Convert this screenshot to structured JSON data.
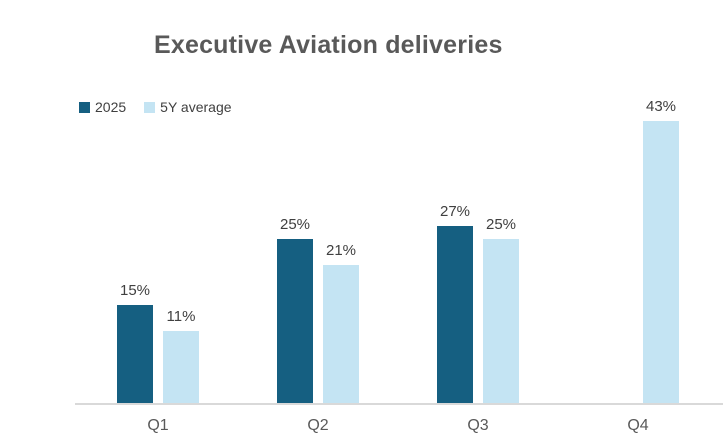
{
  "chart_data": {
    "type": "bar",
    "title": "Executive Aviation deliveries",
    "categories": [
      "Q1",
      "Q2",
      "Q3",
      "Q4"
    ],
    "series": [
      {
        "name": "2025",
        "color": "#155f81",
        "values": [
          15,
          25,
          27,
          null
        ]
      },
      {
        "name": "5Y average",
        "color": "#c4e4f3",
        "values": [
          11,
          21,
          25,
          43
        ]
      }
    ],
    "value_label_suffix": "%",
    "xlabel": "",
    "ylabel": "",
    "ylim": [
      0,
      45
    ],
    "grid": false,
    "legend_position": "top-left"
  },
  "colors": {
    "series_2025": "#155f81",
    "series_5y_average": "#c4e4f3",
    "title_text": "#595959",
    "value_label_text": "#404040",
    "category_label_text": "#595959",
    "axis_line": "#d9d9d9",
    "background": "#ffffff"
  }
}
